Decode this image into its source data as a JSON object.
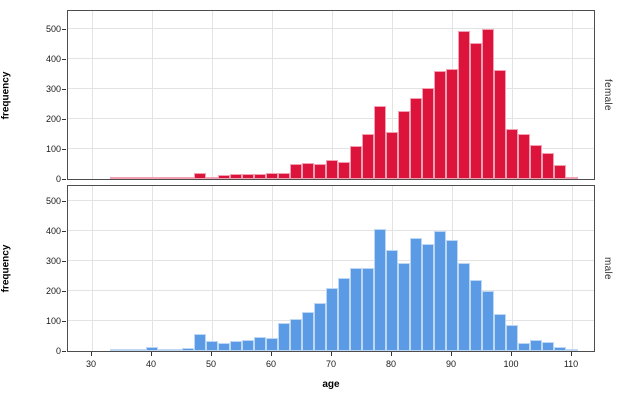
{
  "chart_data": {
    "type": "bar",
    "subtype": "faceted-histogram",
    "title": "",
    "xlabel": "age",
    "ylabel": "frequency",
    "x_ticks": [
      30,
      40,
      50,
      60,
      70,
      80,
      90,
      100,
      110
    ],
    "y_ticks": [
      0,
      100,
      200,
      300,
      400,
      500
    ],
    "xlim": [
      26,
      114
    ],
    "ylim": [
      0,
      560
    ],
    "grid": "on",
    "legend": "none",
    "facet_strip_position": "right",
    "bin_width": 2,
    "bin_centers": [
      34,
      36,
      38,
      40,
      42,
      44,
      46,
      48,
      50,
      52,
      54,
      56,
      58,
      60,
      62,
      64,
      66,
      68,
      70,
      72,
      74,
      76,
      78,
      80,
      82,
      84,
      86,
      88,
      90,
      92,
      94,
      96,
      98,
      100,
      102,
      104,
      106,
      108,
      110
    ],
    "series": [
      {
        "name": "female",
        "color": "#DC143C",
        "values": [
          6,
          4,
          7,
          4,
          5,
          2,
          4,
          21,
          5,
          12,
          15,
          17,
          15,
          19,
          21,
          49,
          53,
          51,
          62,
          57,
          110,
          151,
          244,
          156,
          228,
          269,
          302,
          361,
          367,
          494,
          453,
          499,
          362,
          168,
          150,
          112,
          87,
          48,
          8
        ]
      },
      {
        "name": "male",
        "color": "#5B9BE5",
        "values": [
          6,
          2,
          2,
          12,
          8,
          4,
          9,
          58,
          32,
          28,
          34,
          36,
          45,
          42,
          93,
          107,
          130,
          160,
          210,
          244,
          277,
          277,
          407,
          338,
          294,
          377,
          355,
          399,
          371,
          294,
          238,
          199,
          122,
          88,
          27,
          36,
          29,
          13,
          3
        ]
      }
    ]
  },
  "labels": {
    "y_axis_title_top": "frequency",
    "y_axis_title_bottom": "frequency",
    "x_axis_title": "age",
    "facet_top": "female",
    "facet_bottom": "male"
  },
  "colors": {
    "female_bar": "#DC143C",
    "male_bar": "#5B9BE5",
    "bar_border": "rgba(255,255,255,0.6)",
    "panel_border": "#4D4D4D",
    "gridline": "#E3E3E3",
    "tick_text": "#1A1A1A",
    "strip_text": "#333333",
    "background": "#FFFFFF"
  }
}
